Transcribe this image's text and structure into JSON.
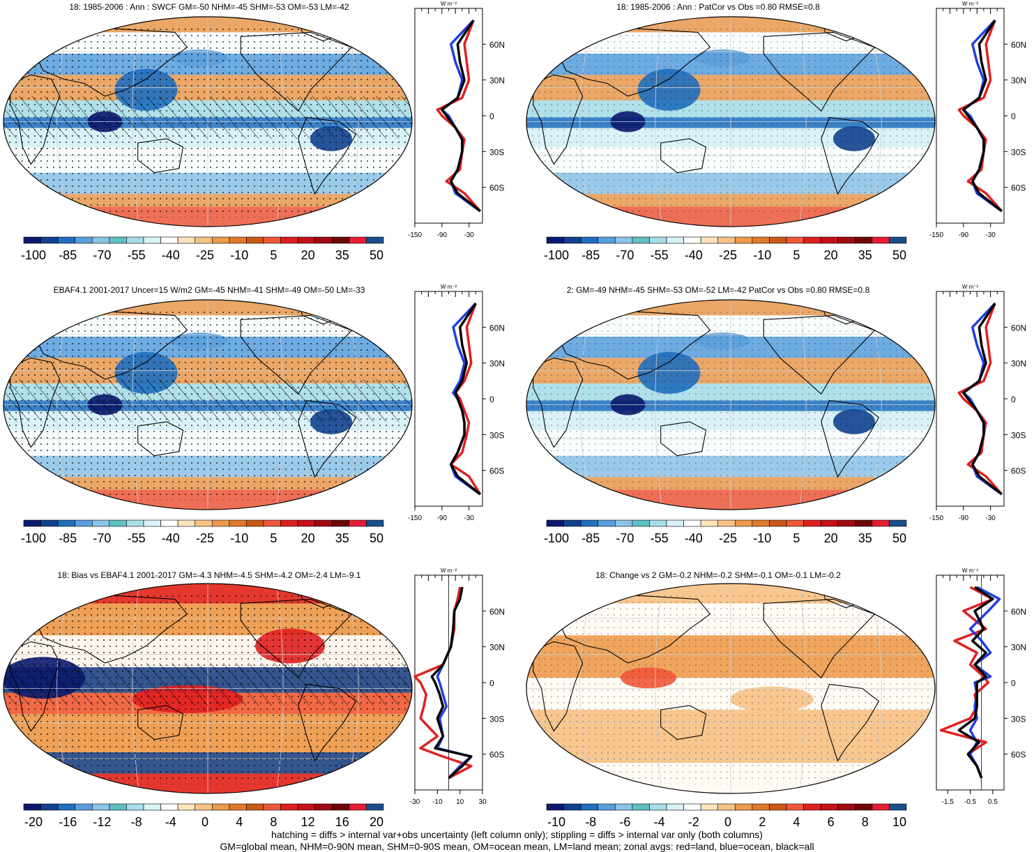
{
  "footer": {
    "line1": "hatching = diffs > internal var+obs uncertainty (left column only); stippling = diffs > internal var only (both columns)",
    "line2": "GM=global mean, NHM=0-90N mean, SHM=0-90S mean, OM=ocean mean, LM=land mean; zonal avgs: red=land, blue=ocean, black=all"
  },
  "colors": {
    "scale13": [
      "#0b1a6e",
      "#12428f",
      "#1f6fbf",
      "#5a9fdc",
      "#8ec3e8",
      "#5fc0c0",
      "#a8dde8",
      "#d9f2f7",
      "#ffffff",
      "#fbe3bb",
      "#f7c287",
      "#ec9a4d",
      "#e17a2a",
      "#ca5a17",
      "#f0583a",
      "#e02020",
      "#c8101a",
      "#a00a12",
      "#6e0508",
      "#e71d36",
      "#1b4f8c"
    ],
    "land": "#e02020",
    "ocean": "#1f3fe0",
    "all": "#000000"
  },
  "panels": [
    {
      "title": "18: 1985-2006 : Ann : SWCF GM=-50 NHM=-45 SHM=-53 OM=-53 LM=-42",
      "cb_labels": [
        "-100",
        "-85",
        "-70",
        "-55",
        "-40",
        "-25",
        "-10",
        "5",
        "20",
        "35",
        "50"
      ],
      "zonal_xticks": [
        "-150",
        "-90",
        "-30"
      ],
      "zonal_unit": "W m⁻²"
    },
    {
      "title": "18: 1985-2006 : Ann : PatCor vs Obs =0.80 RMSE=0.8",
      "cb_labels": [
        "-100",
        "-85",
        "-70",
        "-55",
        "-40",
        "-25",
        "-10",
        "5",
        "20",
        "35",
        "50"
      ],
      "zonal_xticks": [
        "-150",
        "-90",
        "-30"
      ],
      "zonal_unit": "W m⁻²"
    },
    {
      "title": "EBAF4.1 2001-2017 Uncer=15 W/m2 GM=-45 NHM=-41 SHM=-49 OM=-50 LM=-33",
      "cb_labels": [
        "-100",
        "-85",
        "-70",
        "-55",
        "-40",
        "-25",
        "-10",
        "5",
        "20",
        "35",
        "50"
      ],
      "zonal_xticks": [
        "-150",
        "-90",
        "-30"
      ],
      "zonal_unit": "W m⁻²"
    },
    {
      "title": "2: GM=-49 NHM=-45 SHM=-53 OM=-52 LM=-42 PatCor vs Obs =0.80 RMSE=0.8",
      "cb_labels": [
        "-100",
        "-85",
        "-70",
        "-55",
        "-40",
        "-25",
        "-10",
        "5",
        "20",
        "35",
        "50"
      ],
      "zonal_xticks": [
        "-150",
        "-90",
        "-30"
      ],
      "zonal_unit": "W m⁻²"
    },
    {
      "title": "18: Bias vs EBAF4.1 2001-2017 GM=-4.3 NHM=-4.5 SHM=-4.2 OM=-2.4 LM=-9.1",
      "cb_labels": [
        "-20",
        "-16",
        "-12",
        "-8",
        "-4",
        "0",
        "4",
        "8",
        "12",
        "16",
        "20"
      ],
      "zonal_xticks": [
        "-30",
        "-10",
        "10",
        "30"
      ],
      "zonal_unit": "W m⁻²"
    },
    {
      "title": "18: Change vs 2 GM=-0.2 NHM=-0.2 SHM=-0.1 OM=-0.1 LM=-0.2",
      "cb_labels": [
        "-10",
        "-8",
        "-6",
        "-4",
        "-2",
        "0",
        "2",
        "4",
        "6",
        "8",
        "10"
      ],
      "zonal_xticks": [
        "-1.5",
        "-0.5",
        "0.5"
      ],
      "zonal_unit": "W m⁻²"
    }
  ],
  "lat_labels": [
    "60N",
    "30N",
    "0",
    "30S",
    "60S"
  ],
  "chart_data": [
    {
      "type": "heatmap",
      "title": "18: 1985-2006 : Ann : SWCF GM=-50 NHM=-45 SHM=-53 OM=-53 LM=-42",
      "colorbar": [
        -100,
        -85,
        -70,
        -55,
        -40,
        -25,
        -10,
        5,
        20,
        35,
        50
      ],
      "zonal": {
        "lat": [
          80,
          60,
          45,
          30,
          15,
          5,
          0,
          -10,
          -20,
          -30,
          -45,
          -55,
          -65,
          -80
        ],
        "land": [
          -20,
          -40,
          -35,
          -30,
          -45,
          -100,
          -90,
          -60,
          -40,
          -45,
          -50,
          -80,
          -40,
          -5
        ],
        "ocean": [
          -20,
          -70,
          -60,
          -45,
          -55,
          -90,
          -75,
          -60,
          -45,
          -45,
          -55,
          -70,
          -60,
          -5
        ],
        "all": [
          -20,
          -55,
          -50,
          -40,
          -55,
          -90,
          -80,
          -60,
          -45,
          -45,
          -55,
          -70,
          -55,
          -5
        ]
      }
    },
    {
      "type": "heatmap",
      "title": "18: 1985-2006 : Ann : PatCor vs Obs =0.80 RMSE=0.8",
      "colorbar": [
        -100,
        -85,
        -70,
        -55,
        -40,
        -25,
        -10,
        5,
        20,
        35,
        50
      ],
      "zonal": {
        "lat": [
          80,
          60,
          45,
          30,
          15,
          5,
          0,
          -10,
          -20,
          -30,
          -45,
          -55,
          -65,
          -80
        ],
        "land": [
          -20,
          -40,
          -35,
          -30,
          -45,
          -100,
          -90,
          -60,
          -40,
          -45,
          -50,
          -80,
          -40,
          -5
        ],
        "ocean": [
          -20,
          -70,
          -60,
          -45,
          -55,
          -90,
          -75,
          -60,
          -45,
          -45,
          -55,
          -70,
          -60,
          -5
        ],
        "all": [
          -20,
          -55,
          -50,
          -40,
          -55,
          -90,
          -80,
          -60,
          -45,
          -45,
          -55,
          -70,
          -55,
          -5
        ]
      }
    },
    {
      "type": "heatmap",
      "title": "EBAF4.1 2001-2017 Uncer=15 W/m2 GM=-45 NHM=-41 SHM=-49 OM=-50 LM=-33",
      "colorbar": [
        -100,
        -85,
        -70,
        -55,
        -40,
        -25,
        -10,
        5,
        20,
        35,
        50
      ],
      "zonal": {
        "lat": [
          80,
          60,
          45,
          30,
          15,
          5,
          0,
          -10,
          -20,
          -30,
          -45,
          -55,
          -65,
          -80
        ],
        "land": [
          -15,
          -35,
          -30,
          -25,
          -40,
          -60,
          -50,
          -40,
          -30,
          -35,
          -45,
          -70,
          -30,
          -5
        ],
        "ocean": [
          -15,
          -65,
          -55,
          -40,
          -50,
          -65,
          -55,
          -45,
          -40,
          -40,
          -55,
          -70,
          -60,
          -5
        ],
        "all": [
          -15,
          -50,
          -45,
          -35,
          -45,
          -60,
          -55,
          -45,
          -40,
          -40,
          -55,
          -70,
          -55,
          -5
        ]
      }
    },
    {
      "type": "heatmap",
      "title": "2: GM=-49 NHM=-45 SHM=-53 OM=-52 LM=-42 PatCor vs Obs =0.80 RMSE=0.8",
      "colorbar": [
        -100,
        -85,
        -70,
        -55,
        -40,
        -25,
        -10,
        5,
        20,
        35,
        50
      ],
      "zonal": {
        "lat": [
          80,
          60,
          45,
          30,
          15,
          5,
          0,
          -10,
          -20,
          -30,
          -45,
          -55,
          -65,
          -80
        ],
        "land": [
          -20,
          -40,
          -35,
          -30,
          -45,
          -100,
          -90,
          -60,
          -40,
          -45,
          -50,
          -80,
          -40,
          -5
        ],
        "ocean": [
          -20,
          -70,
          -60,
          -45,
          -55,
          -90,
          -75,
          -60,
          -45,
          -45,
          -55,
          -70,
          -60,
          -5
        ],
        "all": [
          -20,
          -55,
          -50,
          -40,
          -55,
          -90,
          -80,
          -60,
          -45,
          -45,
          -55,
          -70,
          -55,
          -5
        ]
      }
    },
    {
      "type": "heatmap",
      "title": "18: Bias vs EBAF4.1 2001-2017 GM=-4.3 NHM=-4.5 SHM=-4.2 OM=-2.4 LM=-9.1",
      "colorbar": [
        -20,
        -16,
        -12,
        -8,
        -4,
        0,
        4,
        8,
        12,
        16,
        20
      ],
      "zonal": {
        "lat": [
          80,
          70,
          60,
          45,
          30,
          15,
          5,
          0,
          -10,
          -20,
          -30,
          -45,
          -55,
          -62,
          -70,
          -80
        ],
        "land": [
          10,
          8,
          5,
          5,
          2,
          -5,
          -30,
          -25,
          -20,
          -22,
          -25,
          -10,
          -25,
          -5,
          20,
          0
        ],
        "ocean": [
          12,
          10,
          5,
          4,
          2,
          -5,
          -10,
          -8,
          -5,
          -2,
          -8,
          -5,
          -10,
          20,
          10,
          0
        ],
        "all": [
          12,
          10,
          5,
          4,
          2,
          -5,
          -15,
          -12,
          -8,
          -5,
          -10,
          -5,
          -12,
          20,
          12,
          0
        ]
      }
    },
    {
      "type": "heatmap",
      "title": "18: Change vs 2 GM=-0.2 NHM=-0.2 SHM=-0.1 OM=-0.1 LM=-0.2",
      "colorbar": [
        -10,
        -8,
        -6,
        -4,
        -2,
        0,
        2,
        4,
        6,
        8,
        10
      ],
      "zonal": {
        "lat": [
          80,
          70,
          60,
          45,
          35,
          25,
          15,
          5,
          0,
          -10,
          -20,
          -30,
          -40,
          -50,
          -60,
          -70,
          -80
        ],
        "land": [
          -0.5,
          0.5,
          -0.8,
          0.2,
          -1.2,
          -0.2,
          -0.5,
          0.1,
          0.3,
          -0.3,
          -0.2,
          -0.5,
          -1.8,
          0.2,
          -0.6,
          -0.2,
          0.0
        ],
        "ocean": [
          -0.2,
          0.8,
          0.3,
          -0.5,
          0.0,
          0.4,
          -0.3,
          0.4,
          -0.3,
          -0.2,
          -0.3,
          -0.2,
          -0.5,
          -0.2,
          -0.5,
          -0.2,
          0.0
        ],
        "all": [
          -0.3,
          0.5,
          -0.3,
          0.1,
          -0.4,
          0.2,
          -0.3,
          0.2,
          -0.2,
          -0.2,
          -0.2,
          -0.3,
          -1.0,
          -0.1,
          -0.6,
          -0.2,
          0.0
        ]
      }
    }
  ]
}
